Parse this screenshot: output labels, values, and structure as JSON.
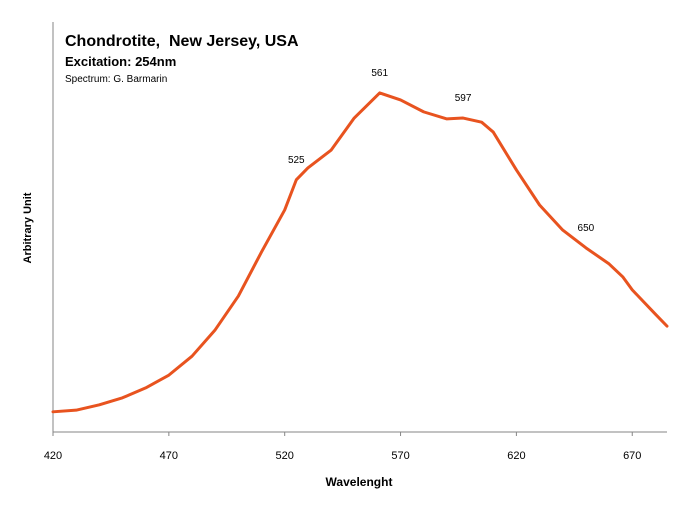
{
  "chart_data": {
    "type": "line",
    "title": "Chondrotite,  New Jersey, USA",
    "subtitle": "Excitation: 254nm",
    "credit": "Spectrum: G. Barmarin",
    "x_label": "Wavelenght",
    "y_label": "Arbitrary Unit",
    "x": [
      420,
      430,
      440,
      450,
      460,
      470,
      480,
      490,
      500,
      510,
      520,
      525,
      530,
      540,
      550,
      561,
      570,
      580,
      590,
      597,
      605,
      610,
      620,
      630,
      640,
      650,
      660,
      666,
      670,
      680,
      685
    ],
    "series": [
      {
        "color": "#e8531f",
        "values": [
          4.9,
          5.3,
          6.6,
          8.3,
          10.7,
          13.8,
          18.4,
          24.8,
          33.0,
          43.7,
          53.9,
          61.2,
          64.1,
          68.4,
          76.2,
          82.3,
          80.6,
          77.7,
          76.0,
          76.2,
          75.2,
          72.8,
          63.6,
          55.1,
          49.0,
          44.7,
          40.8,
          37.6,
          34.5,
          28.6,
          25.7
        ]
      }
    ],
    "peak_labels": [
      525,
      561,
      597,
      650
    ],
    "xlim": [
      420,
      685
    ],
    "ylim": [
      0,
      100
    ],
    "xticks": [
      420,
      470,
      520,
      570,
      620,
      670
    ],
    "grid": false
  }
}
